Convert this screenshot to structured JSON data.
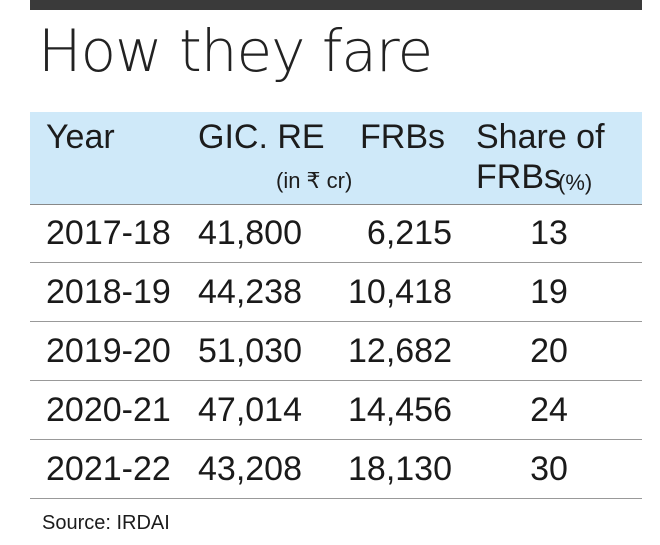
{
  "title": "How they fare",
  "chart_data": {
    "type": "table",
    "columns": [
      {
        "label": "Year"
      },
      {
        "label": "GIC. RE",
        "sub": "(in ₹ cr)"
      },
      {
        "label": "FRBs"
      },
      {
        "label": "Share of",
        "label2": "FRBs",
        "sub": "(%)"
      }
    ],
    "rows": [
      [
        "2017-18",
        "41,800",
        "6,215",
        "13"
      ],
      [
        "2018-19",
        "44,238",
        "10,418",
        "19"
      ],
      [
        "2019-20",
        "51,030",
        "12,682",
        "20"
      ],
      [
        "2020-21",
        "47,014",
        "14,456",
        "24"
      ],
      [
        "2021-22",
        "43,208",
        "18,130",
        "30"
      ]
    ]
  },
  "source": "Source: IRDAI"
}
